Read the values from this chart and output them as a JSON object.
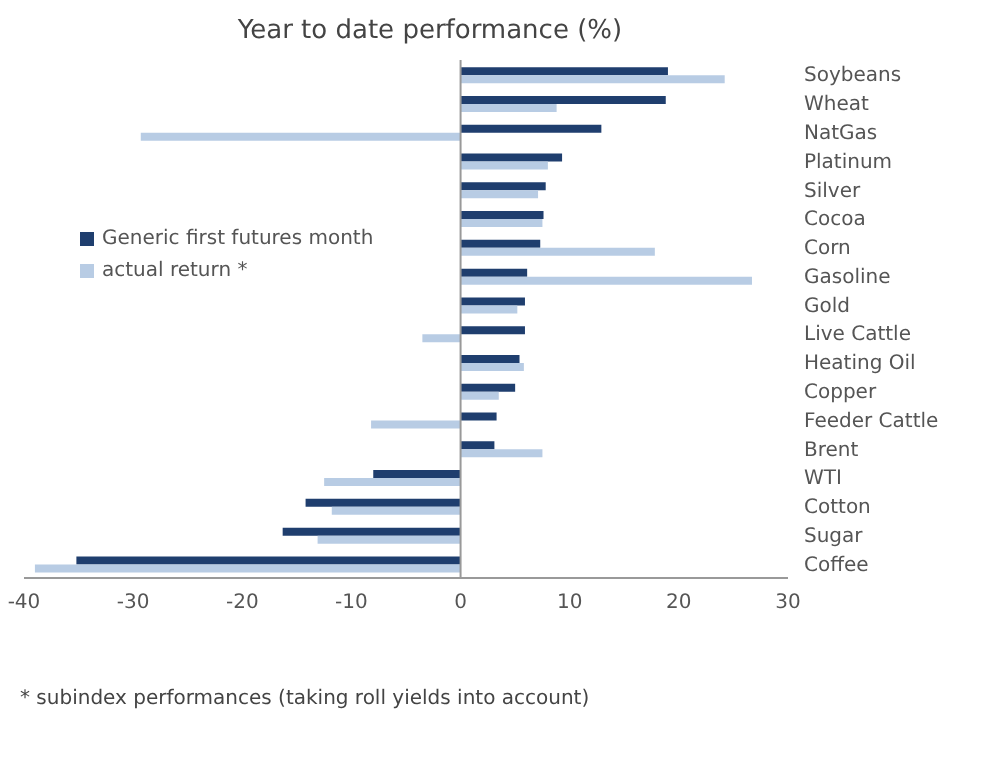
{
  "chart_data": {
    "type": "bar",
    "orientation": "horizontal",
    "title": "Year to date performance (%)",
    "categories": [
      "Soybeans",
      "Wheat",
      "NatGas",
      "Platinum",
      "Silver",
      "Cocoa",
      "Corn",
      "Gasoline",
      "Gold",
      "Live Cattle",
      "Heating Oil",
      "Copper",
      "Feeder Cattle",
      "Brent",
      "WTI",
      "Cotton",
      "Sugar",
      "Coffee"
    ],
    "series": [
      {
        "name": "Generic first futures month",
        "color": "#1f3e6e",
        "values": [
          19,
          18.8,
          12.9,
          9.3,
          7.8,
          7.6,
          7.3,
          6.1,
          5.9,
          5.9,
          5.4,
          5,
          3.3,
          3.1,
          -8,
          -14.2,
          -16.3,
          -35.2
        ]
      },
      {
        "name": "actual return *",
        "color": "#b8cce4",
        "values": [
          24.2,
          8.8,
          -29.3,
          8,
          7.1,
          7.5,
          17.8,
          26.7,
          5.2,
          -3.5,
          5.8,
          3.5,
          -8.2,
          7.5,
          -12.5,
          -11.8,
          -13.1,
          -39
        ]
      }
    ],
    "xlim": [
      -40,
      30
    ],
    "xticks": [
      -40,
      -30,
      -20,
      -10,
      0,
      10,
      20,
      30
    ],
    "legend": "left",
    "annotations": [
      "* subindex performances (taking roll yields into account)"
    ]
  }
}
